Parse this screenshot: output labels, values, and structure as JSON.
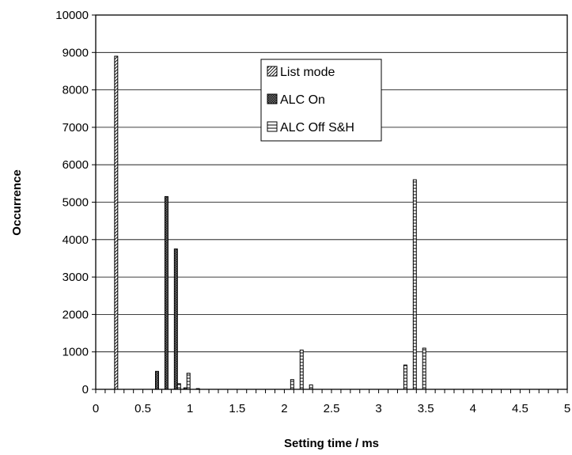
{
  "chart_data": {
    "type": "bar",
    "xlabel": "Setting time / ms",
    "ylabel": "Occurrence",
    "xlim": [
      0,
      5
    ],
    "ylim": [
      0,
      10000
    ],
    "bin_width": 0.1,
    "x_ticks": [
      "0",
      "0.5",
      "1",
      "1.5",
      "2",
      "2.5",
      "3",
      "3.5",
      "4",
      "4.5",
      "5"
    ],
    "y_ticks": [
      "0",
      "1000",
      "2000",
      "3000",
      "4000",
      "5000",
      "6000",
      "7000",
      "8000",
      "9000",
      "10000"
    ],
    "grid": "horizontal",
    "legend_position": "top-center",
    "series": [
      {
        "name": "List mode",
        "pattern": "diagonal",
        "points": [
          {
            "x": 0.3,
            "y": 8900
          }
        ]
      },
      {
        "name": "ALC On",
        "pattern": "crosshatch",
        "points": [
          {
            "x": 0.7,
            "y": 480
          },
          {
            "x": 0.8,
            "y": 5150
          },
          {
            "x": 0.9,
            "y": 3750
          },
          {
            "x": 1.0,
            "y": 40
          }
        ]
      },
      {
        "name": "ALC Off S&H",
        "pattern": "horizontal",
        "points": [
          {
            "x": 0.9,
            "y": 150
          },
          {
            "x": 1.0,
            "y": 430
          },
          {
            "x": 1.1,
            "y": 20
          },
          {
            "x": 2.1,
            "y": 260
          },
          {
            "x": 2.2,
            "y": 1050
          },
          {
            "x": 2.3,
            "y": 120
          },
          {
            "x": 3.3,
            "y": 650
          },
          {
            "x": 3.4,
            "y": 5600
          },
          {
            "x": 3.5,
            "y": 1100
          }
        ]
      }
    ]
  }
}
